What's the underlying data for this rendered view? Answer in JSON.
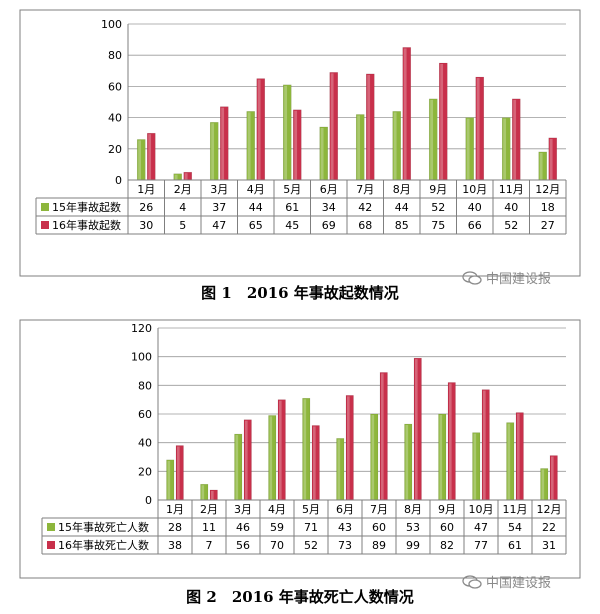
{
  "figures": [
    {
      "caption": "图 1　2016 年事故起数情况",
      "watermark": "中国建设报",
      "chart_data": {
        "type": "bar",
        "categories": [
          "1月",
          "2月",
          "3月",
          "4月",
          "5月",
          "6月",
          "7月",
          "8月",
          "9月",
          "10月",
          "11月",
          "12月"
        ],
        "series": [
          {
            "name": "15年事故起数",
            "color": "#8db63c",
            "values": [
              26,
              4,
              37,
              44,
              61,
              34,
              42,
              44,
              52,
              40,
              40,
              18
            ]
          },
          {
            "name": "16年事故起数",
            "color": "#c8304b",
            "values": [
              30,
              5,
              47,
              65,
              45,
              69,
              68,
              85,
              75,
              66,
              52,
              27
            ]
          }
        ],
        "ylim": [
          0,
          100
        ],
        "yticks": [
          0,
          20,
          40,
          60,
          80,
          100
        ],
        "grid": true,
        "legend": "data-table"
      }
    },
    {
      "caption": "图 2　2016 年事故死亡人数情况",
      "watermark": "中国建设报",
      "chart_data": {
        "type": "bar",
        "categories": [
          "1月",
          "2月",
          "3月",
          "4月",
          "5月",
          "6月",
          "7月",
          "8月",
          "9月",
          "10月",
          "11月",
          "12月"
        ],
        "series": [
          {
            "name": "15年事故死亡人数",
            "color": "#8db63c",
            "values": [
              28,
              11,
              46,
              59,
              71,
              43,
              60,
              53,
              60,
              47,
              54,
              22
            ]
          },
          {
            "name": "16年事故死亡人数",
            "color": "#c8304b",
            "values": [
              38,
              7,
              56,
              70,
              52,
              73,
              89,
              99,
              82,
              77,
              61,
              31
            ]
          }
        ],
        "ylim": [
          0,
          120
        ],
        "yticks": [
          0,
          20,
          40,
          60,
          80,
          100,
          120
        ],
        "grid": true,
        "legend": "data-table"
      }
    }
  ]
}
